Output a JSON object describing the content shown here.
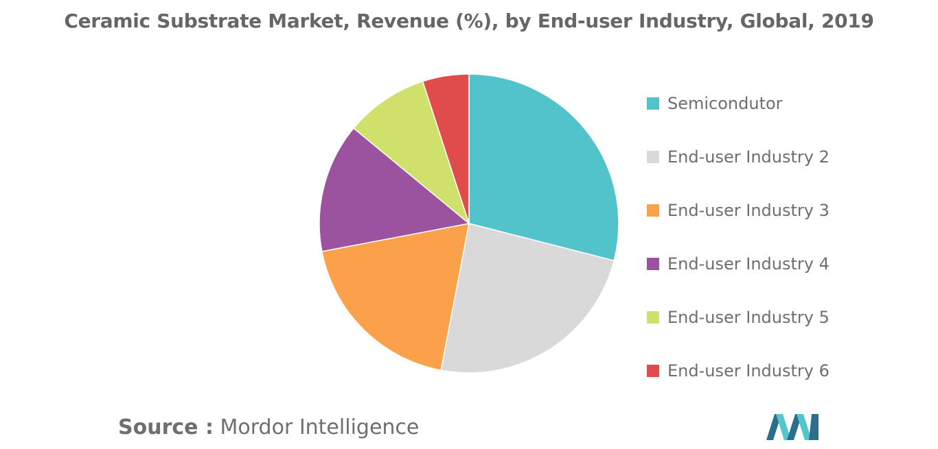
{
  "chart_data": {
    "type": "pie",
    "title": "Ceramic Substrate Market, Revenue (%), by End-user Industry, Global, 2019",
    "slices": [
      {
        "name": "Semicondutor",
        "value": 29,
        "color": "#52c4c9"
      },
      {
        "name": "End-user Industry 2",
        "value": 24,
        "color": "#d9d9d9"
      },
      {
        "name": "End-user Industry 3",
        "value": 19,
        "color": "#fba149"
      },
      {
        "name": "End-user Industry 4",
        "value": 14,
        "color": "#9b529f"
      },
      {
        "name": "End-user Industry 5",
        "value": 9,
        "color": "#cfe16b"
      },
      {
        "name": "End-user Industry 6",
        "value": 5,
        "color": "#e04b4c"
      }
    ],
    "legend_position": "right"
  },
  "source": {
    "label": "Source :",
    "text": "Mordor Intelligence"
  },
  "logo": {
    "icon": "mordor-intelligence-logo",
    "colors": [
      "#2b6f8e",
      "#54c5cd"
    ]
  }
}
